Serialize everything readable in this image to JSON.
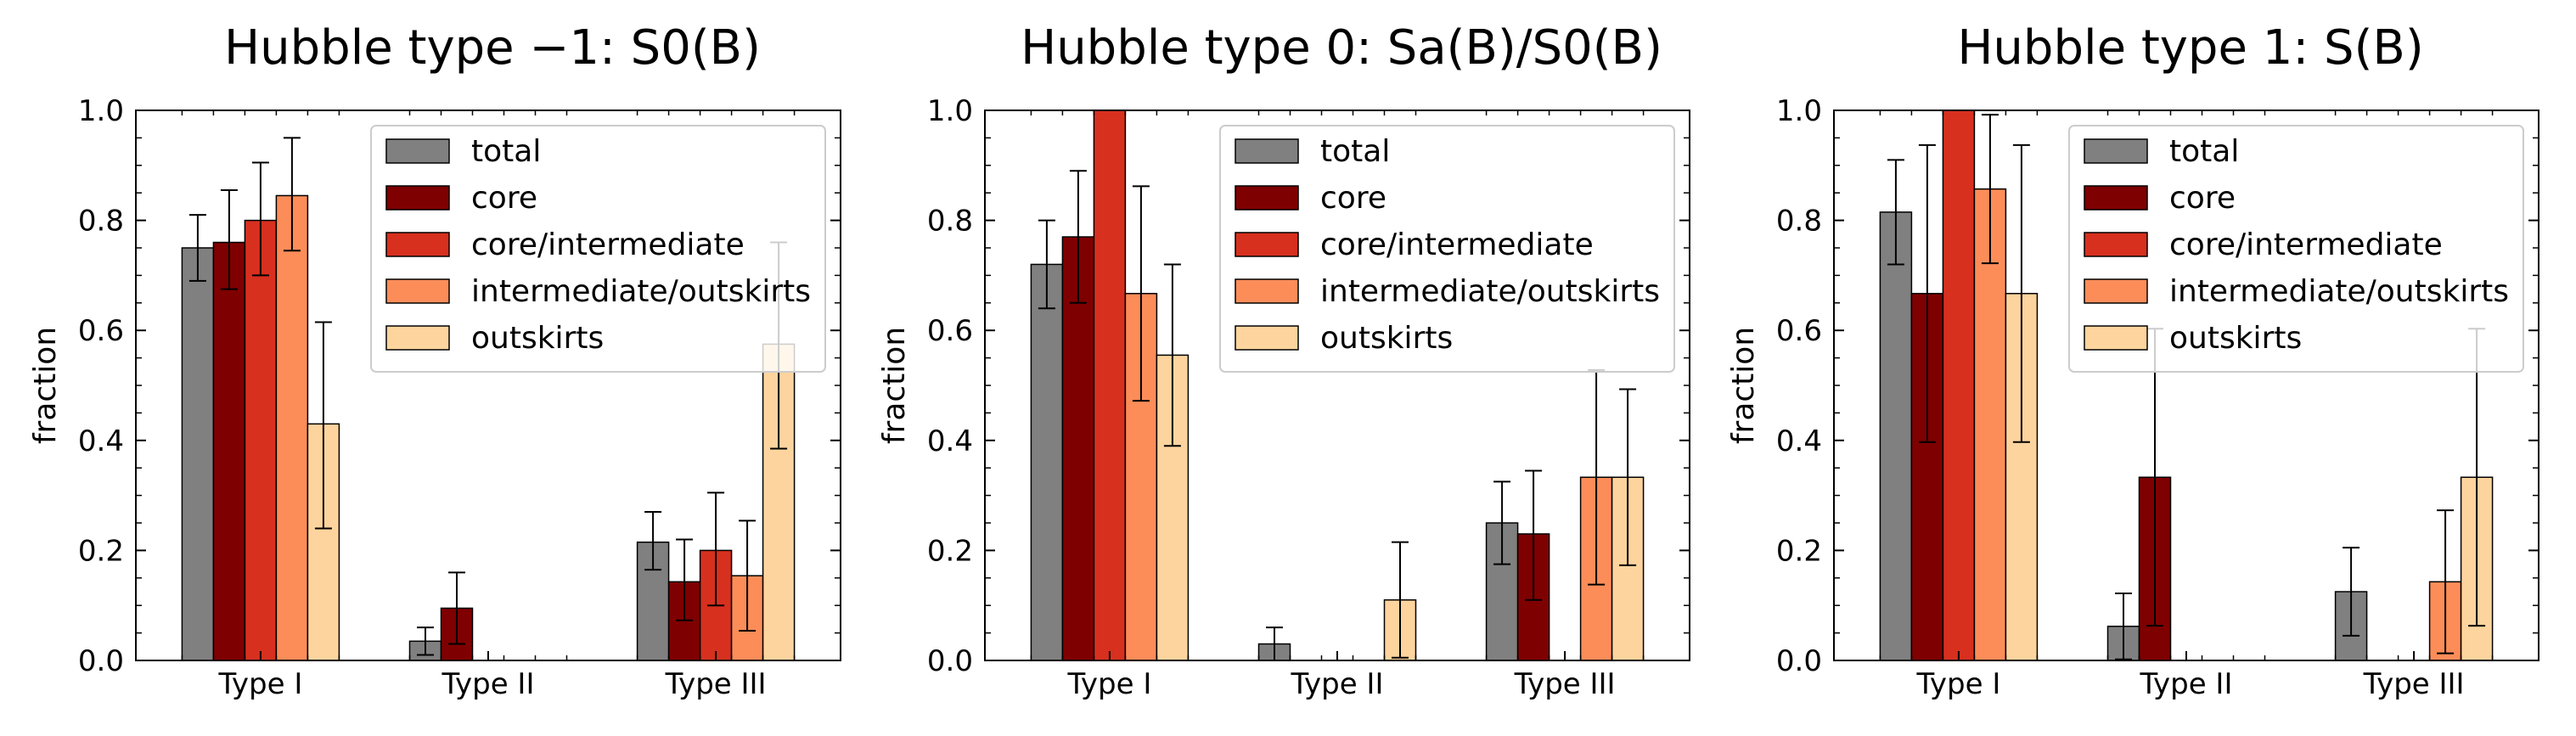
{
  "figure": {
    "colors": {
      "total": "#808080",
      "core": "#7f0000",
      "core/intermediate": "#d7301f",
      "intermediate/outskirts": "#fc8d59",
      "outskirts": "#fdd49e"
    }
  },
  "chart_data": [
    {
      "type": "bar",
      "title": "Hubble type −1: S0(B)",
      "xlabel": "",
      "ylabel": "fraction",
      "ylim": [
        0,
        1.0
      ],
      "yticks": [
        "0.0",
        "0.2",
        "0.4",
        "0.6",
        "0.8",
        "1.0"
      ],
      "categories": [
        "Type I",
        "Type II",
        "Type III"
      ],
      "legend_position": "top-right",
      "series": [
        {
          "name": "total",
          "values": [
            0.75,
            0.035,
            0.215
          ],
          "err_low": [
            0.06,
            0.025,
            0.05
          ],
          "err_high": [
            0.06,
            0.025,
            0.055
          ]
        },
        {
          "name": "core",
          "values": [
            0.76,
            0.095,
            0.143
          ],
          "err_low": [
            0.085,
            0.065,
            0.07
          ],
          "err_high": [
            0.095,
            0.065,
            0.077
          ]
        },
        {
          "name": "core/intermediate",
          "values": [
            0.8,
            0.0,
            0.2
          ],
          "err_low": [
            0.1,
            0.0,
            0.1
          ],
          "err_high": [
            0.105,
            0.0,
            0.105
          ]
        },
        {
          "name": "intermediate/outskirts",
          "values": [
            0.845,
            0.0,
            0.154
          ],
          "err_low": [
            0.1,
            0.0,
            0.1
          ],
          "err_high": [
            0.105,
            0.0,
            0.1
          ]
        },
        {
          "name": "outskirts",
          "values": [
            0.43,
            0.0,
            0.575
          ],
          "err_low": [
            0.19,
            0.0,
            0.19
          ],
          "err_high": [
            0.185,
            0.0,
            0.185
          ]
        }
      ]
    },
    {
      "type": "bar",
      "title": "Hubble type 0: Sa(B)/S0(B)",
      "xlabel": "",
      "ylabel": "fraction",
      "ylim": [
        0,
        1.0
      ],
      "yticks": [
        "0.0",
        "0.2",
        "0.4",
        "0.6",
        "0.8",
        "1.0"
      ],
      "categories": [
        "Type I",
        "Type II",
        "Type III"
      ],
      "legend_position": "top-right",
      "series": [
        {
          "name": "total",
          "values": [
            0.72,
            0.03,
            0.25
          ],
          "err_low": [
            0.08,
            0.03,
            0.075
          ],
          "err_high": [
            0.08,
            0.03,
            0.075
          ]
        },
        {
          "name": "core",
          "values": [
            0.77,
            0.0,
            0.23
          ],
          "err_low": [
            0.12,
            0.0,
            0.12
          ],
          "err_high": [
            0.12,
            0.0,
            0.115
          ]
        },
        {
          "name": "core/intermediate",
          "values": [
            1.0,
            0.0,
            0.0
          ],
          "err_low": [
            0.0,
            0.0,
            0.0
          ],
          "err_high": [
            0.0,
            0.0,
            0.0
          ]
        },
        {
          "name": "intermediate/outskirts",
          "values": [
            0.667,
            0.0,
            0.333
          ],
          "err_low": [
            0.195,
            0.0,
            0.195
          ],
          "err_high": [
            0.195,
            0.0,
            0.195
          ]
        },
        {
          "name": "outskirts",
          "values": [
            0.555,
            0.11,
            0.333
          ],
          "err_low": [
            0.165,
            0.105,
            0.16
          ],
          "err_high": [
            0.165,
            0.105,
            0.16
          ]
        }
      ]
    },
    {
      "type": "bar",
      "title": "Hubble type 1: S(B)",
      "xlabel": "",
      "ylabel": "fraction",
      "ylim": [
        0,
        1.0
      ],
      "yticks": [
        "0.0",
        "0.2",
        "0.4",
        "0.6",
        "0.8",
        "1.0"
      ],
      "categories": [
        "Type I",
        "Type II",
        "Type III"
      ],
      "legend_position": "top-right",
      "series": [
        {
          "name": "total",
          "values": [
            0.815,
            0.062,
            0.125
          ],
          "err_low": [
            0.095,
            0.06,
            0.08
          ],
          "err_high": [
            0.095,
            0.06,
            0.08
          ]
        },
        {
          "name": "core",
          "values": [
            0.667,
            0.333,
            0.0
          ],
          "err_low": [
            0.27,
            0.27,
            0.0
          ],
          "err_high": [
            0.27,
            0.27,
            0.0
          ]
        },
        {
          "name": "core/intermediate",
          "values": [
            1.0,
            0.0,
            0.0
          ],
          "err_low": [
            0.0,
            0.0,
            0.0
          ],
          "err_high": [
            0.0,
            0.0,
            0.0
          ]
        },
        {
          "name": "intermediate/outskirts",
          "values": [
            0.857,
            0.0,
            0.143
          ],
          "err_low": [
            0.135,
            0.0,
            0.13
          ],
          "err_high": [
            0.135,
            0.0,
            0.13
          ]
        },
        {
          "name": "outskirts",
          "values": [
            0.667,
            0.0,
            0.333
          ],
          "err_low": [
            0.27,
            0.0,
            0.27
          ],
          "err_high": [
            0.27,
            0.0,
            0.27
          ]
        }
      ]
    }
  ]
}
